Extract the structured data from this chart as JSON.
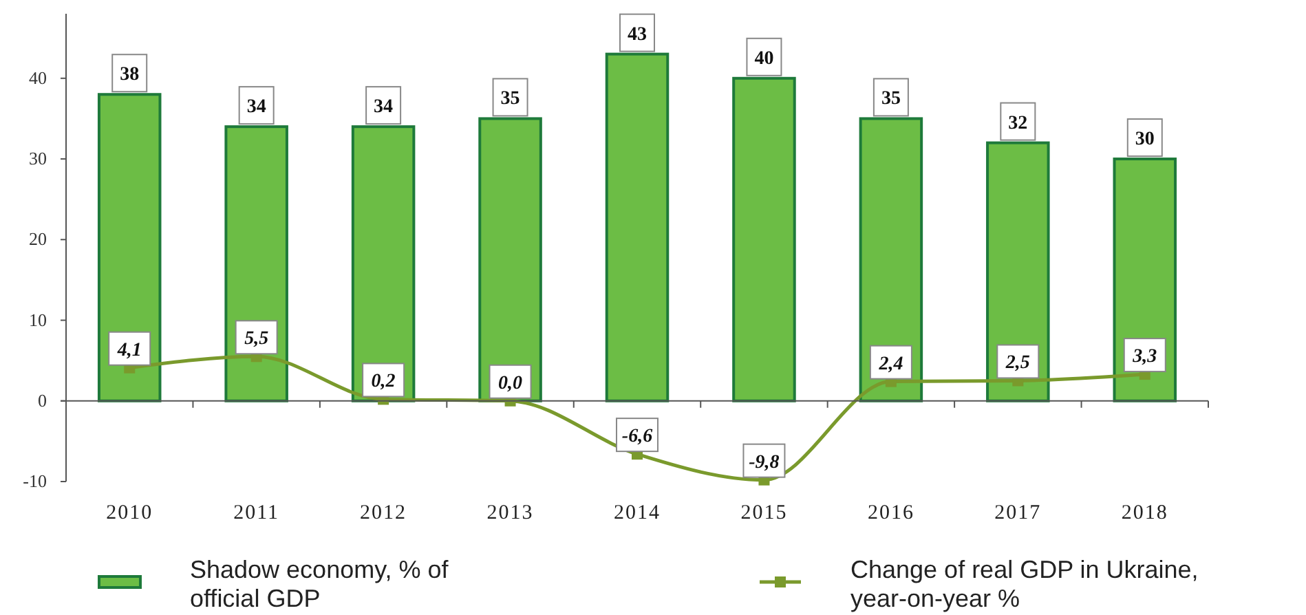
{
  "chart_data": {
    "type": "bar",
    "categories": [
      "2010",
      "2011",
      "2012",
      "2013",
      "2014",
      "2015",
      "2016",
      "2017",
      "2018"
    ],
    "series": [
      {
        "name": "Shadow economy, % of official GDP",
        "color": "#6cbd45",
        "values": [
          38,
          34,
          34,
          35,
          43,
          40,
          35,
          32,
          30
        ],
        "value_labels": [
          "38",
          "34",
          "34",
          "35",
          "43",
          "40",
          "35",
          "32",
          "30"
        ]
      },
      {
        "name": "Change of real GDP in Ukraine, year-on-year %",
        "type": "line",
        "color": "#7a9a2c",
        "values": [
          4.1,
          5.5,
          0.2,
          0.0,
          -6.6,
          -9.8,
          2.4,
          2.5,
          3.3
        ],
        "value_labels": [
          "4,1",
          "5,5",
          "0,2",
          "0,0",
          "-6,6",
          "-9,8",
          "2,4",
          "2,5",
          "3,3"
        ]
      }
    ],
    "ylim": [
      -10,
      48
    ],
    "yticks": [
      -10,
      0,
      10,
      20,
      30,
      40
    ],
    "legend": "bottom",
    "marker": "square",
    "line_style": "solid"
  }
}
